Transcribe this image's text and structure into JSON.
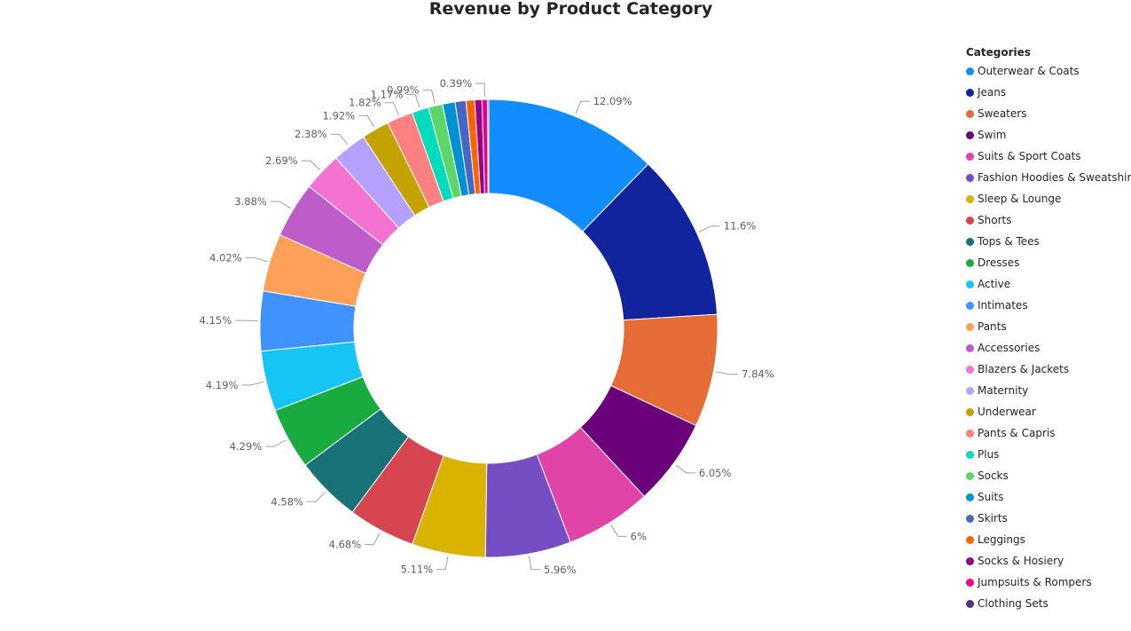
{
  "chart_data": {
    "type": "pie",
    "title": "Revenue by Product Category",
    "legend_title": "Categories",
    "legend_position": "right",
    "slices": [
      {
        "name": "Outerwear & Coats",
        "value": 12.09,
        "label": "12.09%",
        "color": "#118DFF"
      },
      {
        "name": "Jeans",
        "value": 11.6,
        "label": "11.6%",
        "color": "#12239E"
      },
      {
        "name": "Sweaters",
        "value": 7.84,
        "label": "7.84%",
        "color": "#E66C37"
      },
      {
        "name": "Swim",
        "value": 6.05,
        "label": "6.05%",
        "color": "#6B007B"
      },
      {
        "name": "Suits & Sport Coats",
        "value": 6.0,
        "label": "6%",
        "color": "#E044A7"
      },
      {
        "name": "Fashion Hoodies & Sweatshirts",
        "value": 5.96,
        "label": "5.96%",
        "color": "#744EC2"
      },
      {
        "name": "Sleep & Lounge",
        "value": 5.11,
        "label": "5.11%",
        "color": "#D9B300"
      },
      {
        "name": "Shorts",
        "value": 4.68,
        "label": "4.68%",
        "color": "#D64550"
      },
      {
        "name": "Tops & Tees",
        "value": 4.58,
        "label": "4.58%",
        "color": "#197278"
      },
      {
        "name": "Dresses",
        "value": 4.29,
        "label": "4.29%",
        "color": "#1AAB40"
      },
      {
        "name": "Active",
        "value": 4.19,
        "label": "4.19%",
        "color": "#15C6F4"
      },
      {
        "name": "Intimates",
        "value": 4.15,
        "label": "4.15%",
        "color": "#4092FF"
      },
      {
        "name": "Pants",
        "value": 4.02,
        "label": "4.02%",
        "color": "#FFA058"
      },
      {
        "name": "Accessories",
        "value": 3.88,
        "label": "3.88%",
        "color": "#BE5DC9"
      },
      {
        "name": "Blazers & Jackets",
        "value": 2.69,
        "label": "2.69%",
        "color": "#F472D0"
      },
      {
        "name": "Maternity",
        "value": 2.38,
        "label": "2.38%",
        "color": "#B5A1FF"
      },
      {
        "name": "Underwear",
        "value": 1.92,
        "label": "1.92%",
        "color": "#C4A200"
      },
      {
        "name": "Pants & Capris",
        "value": 1.82,
        "label": "1.82%",
        "color": "#FF8080"
      },
      {
        "name": "Plus",
        "value": 1.17,
        "label": "1.17%",
        "color": "#00DBBC"
      },
      {
        "name": "Socks",
        "value": 0.99,
        "label": "0.99%",
        "color": "#5BD667"
      },
      {
        "name": "Suits",
        "value": 0.88,
        "label": "",
        "color": "#0091D5"
      },
      {
        "name": "Skirts",
        "value": 0.75,
        "label": "",
        "color": "#4668C5"
      },
      {
        "name": "Leggings",
        "value": 0.6,
        "label": "",
        "color": "#FF6300"
      },
      {
        "name": "Socks & Hosiery",
        "value": 0.5,
        "label": "",
        "color": "#99008A"
      },
      {
        "name": "Jumpsuits & Rompers",
        "value": 0.39,
        "label": "0.39%",
        "color": "#EC008C"
      },
      {
        "name": "Clothing Sets",
        "value": 0.08,
        "label": "",
        "color": "#533285"
      }
    ]
  }
}
